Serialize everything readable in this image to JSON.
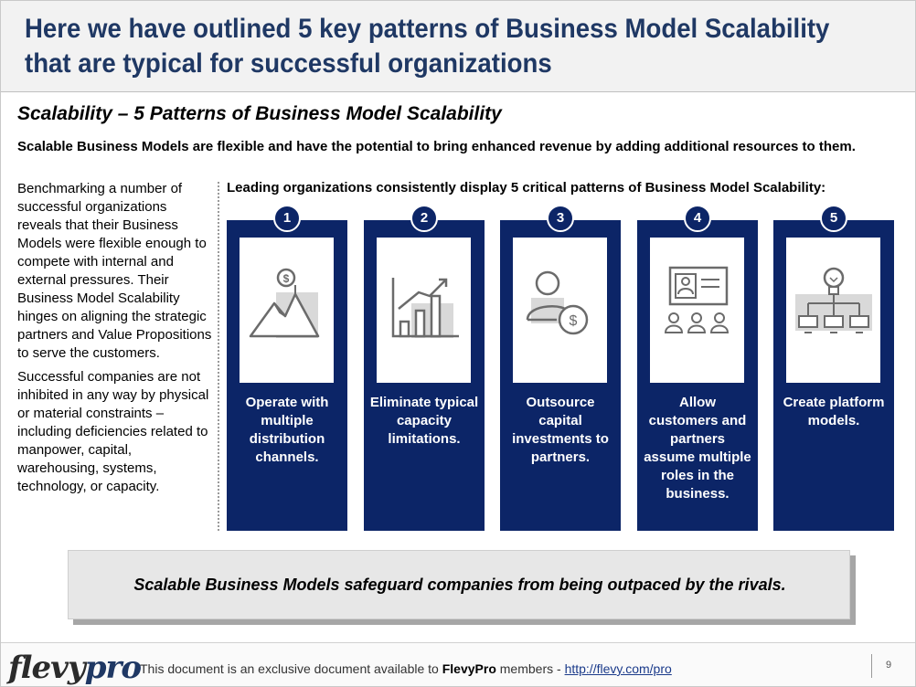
{
  "title": "Here we have outlined 5 key patterns of Business Model Scalability that are typical for successful organizations",
  "section_title": "Scalability – 5 Patterns of Business Model Scalability",
  "lead": "Scalable Business Models are flexible and have the potential to bring enhanced revenue by adding additional resources to them.",
  "left_paragraphs": [
    "Benchmarking a number of successful organizations reveals that their Business Models were flexible enough to compete with internal and external pressures.  Their Business Model Scalability hinges on aligning the strategic partners and Value Propositions to serve the customers.",
    "Successful companies are not inhibited in any way by physical or material constraints – including deficiencies related to manpower, capital, warehousing, systems, technology, or capacity."
  ],
  "patterns_heading": "Leading organizations consistently display 5 critical patterns of Business Model Scalability:",
  "patterns": [
    {
      "number": "1",
      "label": "Operate with multiple distribution channels.",
      "icon": "mountain-dollar-icon"
    },
    {
      "number": "2",
      "label": "Eliminate typical capacity limitations.",
      "icon": "growth-chart-icon"
    },
    {
      "number": "3",
      "label": "Outsource capital investments to partners.",
      "icon": "person-dollar-icon"
    },
    {
      "number": "4",
      "label": "Allow customers and partners assume multiple roles in the business.",
      "icon": "presentation-audience-icon"
    },
    {
      "number": "5",
      "label": "Create platform models.",
      "icon": "lightbulb-network-icon"
    }
  ],
  "summary": "Scalable Business Models safeguard companies from being outpaced by the rivals.",
  "footer": {
    "brand_main": "flevy",
    "brand_accent": "pro",
    "note_prefix": "This document is an exclusive document available to ",
    "note_brand": "FlevyPro",
    "note_middle": " members - ",
    "note_link": "http://flevy.com/pro",
    "page_number": "9"
  },
  "colors": {
    "title": "#1f3864",
    "card": "#0c2567",
    "icon": "#6b6b6b",
    "icon_shadow": "#d9d9d9"
  }
}
